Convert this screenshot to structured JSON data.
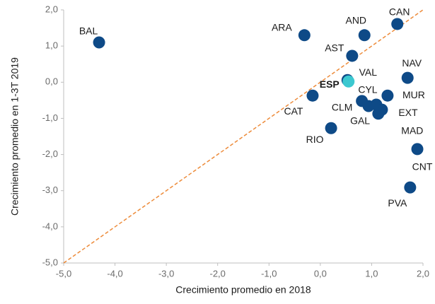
{
  "chart_data": {
    "type": "scatter",
    "x_label": "Crecimiento promedio en 2018",
    "y_label": "Crecimiento promedio en 1-3T 2019",
    "labels": [
      "BAL",
      "ARA",
      "AND",
      "CAN",
      "AST",
      "NAV",
      "VAL",
      "ESP",
      "CAT",
      "MUR",
      "CYL",
      "CLM",
      "GAL",
      "EXT",
      "MAD",
      "RIO",
      "CNT",
      "PVA"
    ],
    "x": [
      -4.31,
      -0.31,
      0.86,
      1.5,
      0.62,
      1.7,
      0.53,
      0.55,
      -0.15,
      1.31,
      1.09,
      0.81,
      0.94,
      1.2,
      1.13,
      0.21,
      1.89,
      1.75
    ],
    "values": [
      1.1,
      1.3,
      1.3,
      1.61,
      0.73,
      0.12,
      0.06,
      0.02,
      -0.37,
      -0.37,
      -0.62,
      -0.52,
      -0.66,
      -0.76,
      -0.87,
      -1.27,
      -1.85,
      -2.91
    ],
    "point_colors": [
      "#0e4a87",
      "#0e4a87",
      "#0e4a87",
      "#0e4a87",
      "#0e4a87",
      "#0e4a87",
      "#0e4a87",
      "#3cc8d0",
      "#0e4a87",
      "#0e4a87",
      "#0e4a87",
      "#0e4a87",
      "#0e4a87",
      "#0e4a87",
      "#0e4a87",
      "#0e4a87",
      "#0e4a87",
      "#0e4a87"
    ],
    "reference_line_color": "#ed8b3a",
    "xlim": [
      -5,
      2
    ],
    "ylim": [
      -5,
      2
    ],
    "xticks": [
      {
        "value": -5,
        "label": "-5,0"
      },
      {
        "value": -4,
        "label": "-4,0"
      },
      {
        "value": -3,
        "label": "-3,0"
      },
      {
        "value": -2,
        "label": "-2,0"
      },
      {
        "value": -1,
        "label": "-1,0"
      },
      {
        "value": 0,
        "label": "0,0"
      },
      {
        "value": 1,
        "label": "1,0"
      },
      {
        "value": 2,
        "label": "2,0"
      }
    ],
    "yticks": [
      {
        "value": -5,
        "label": "-5,0"
      },
      {
        "value": -4,
        "label": "-4,0"
      },
      {
        "value": -3,
        "label": "-3,0"
      },
      {
        "value": -2,
        "label": "-2,0"
      },
      {
        "value": -1,
        "label": "-1,0"
      },
      {
        "value": 0,
        "label": "0,0"
      },
      {
        "value": 1,
        "label": "1,0"
      },
      {
        "value": 2,
        "label": "2,0"
      }
    ]
  }
}
